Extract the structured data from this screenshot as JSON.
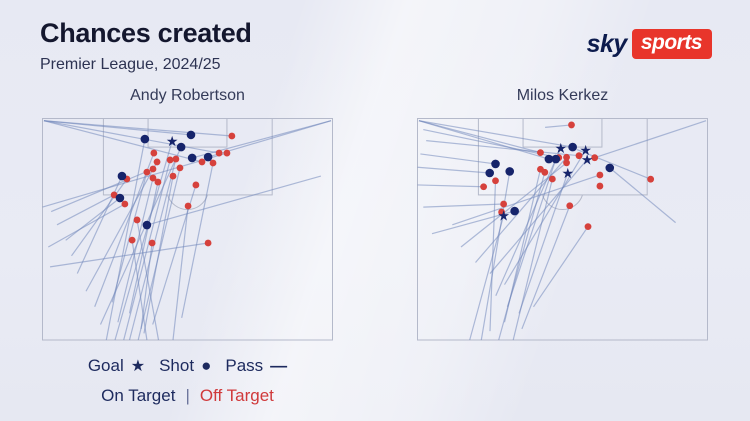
{
  "header": {
    "title": "Chances created",
    "subtitle": "Premier League, 2024/25"
  },
  "brand": {
    "sky": "sky",
    "sports": "sports"
  },
  "legend": {
    "goal_label": "Goal",
    "goal_icon": "★",
    "shot_label": "Shot",
    "shot_icon": "●",
    "pass_label": "Pass",
    "pass_icon": "—",
    "on_target_label": "On Target",
    "separator": "|",
    "off_target_label": "Off Target"
  },
  "colors": {
    "background": "#e9ebf4",
    "title_text": "#14172e",
    "on_target": "#16246b",
    "off_target": "#d6413c",
    "pass_line": "#7389bb",
    "pitch_line": "#b4b9ca",
    "sky_navy": "#0c1b4d",
    "sky_red": "#e8352b"
  },
  "chart_data": [
    {
      "type": "scatter",
      "title": "Andy Robertson",
      "units": "percent of pitch width (x, left-to-right) and pitch length toward own half (y, goal-line at top)",
      "marker_legend": {
        "goal": "star",
        "shot_on_target": "navy dot",
        "shot_off_target": "red dot",
        "pass": "line"
      },
      "goals": [
        [
          44.7,
          10.2
        ]
      ],
      "shots_on_target": [
        [
          35.3,
          9.3
        ],
        [
          51.2,
          7.4
        ],
        [
          47.8,
          12.9
        ],
        [
          51.6,
          17.8
        ],
        [
          57.1,
          17.4
        ],
        [
          27.4,
          26.0
        ],
        [
          26.7,
          35.9
        ],
        [
          36.0,
          48.1
        ]
      ],
      "shots_off_target": [
        [
          65.3,
          7.9
        ],
        [
          38.4,
          15.6
        ],
        [
          44.0,
          18.7
        ],
        [
          60.9,
          15.6
        ],
        [
          63.6,
          15.6
        ],
        [
          39.5,
          19.6
        ],
        [
          46.0,
          18.3
        ],
        [
          55.0,
          19.6
        ],
        [
          58.8,
          20.1
        ],
        [
          38.1,
          22.8
        ],
        [
          47.4,
          22.3
        ],
        [
          36.0,
          24.2
        ],
        [
          29.1,
          27.3
        ],
        [
          38.1,
          26.9
        ],
        [
          45.0,
          26.0
        ],
        [
          39.8,
          28.7
        ],
        [
          52.9,
          30.0
        ],
        [
          24.7,
          34.5
        ],
        [
          28.4,
          38.6
        ],
        [
          50.2,
          39.5
        ],
        [
          32.6,
          45.8
        ],
        [
          30.9,
          54.9
        ],
        [
          37.8,
          56.2
        ],
        [
          57.1,
          56.2
        ]
      ],
      "passes": [
        [
          0.5,
          1,
          51.2,
          7.4
        ],
        [
          0.5,
          1,
          60.9,
          15.6
        ],
        [
          0.5,
          1,
          55.0,
          19.6
        ],
        [
          0.5,
          1,
          65.3,
          7.9
        ],
        [
          99.5,
          1,
          57.1,
          17.4
        ],
        [
          99.5,
          1,
          51.6,
          17.8
        ],
        [
          22,
          100,
          35.3,
          9.3
        ],
        [
          25,
          100,
          44.7,
          10.2
        ],
        [
          28,
          100,
          44.0,
          18.7
        ],
        [
          30,
          100,
          46.0,
          18.3
        ],
        [
          33,
          100,
          47.4,
          22.3
        ],
        [
          35,
          97,
          45.0,
          26.0
        ],
        [
          38,
          93,
          52.9,
          30.0
        ],
        [
          20,
          93,
          47.8,
          12.9
        ],
        [
          45,
          100,
          50.2,
          39.5
        ],
        [
          18,
          85,
          38.4,
          15.6
        ],
        [
          15,
          78,
          39.5,
          19.6
        ],
        [
          12,
          70,
          27.4,
          26.0
        ],
        [
          10,
          62,
          29.1,
          27.3
        ],
        [
          8,
          55,
          26.7,
          35.9
        ],
        [
          5,
          48,
          24.7,
          34.5
        ],
        [
          3,
          42,
          38.1,
          22.8
        ],
        [
          2,
          58,
          28.4,
          38.6
        ],
        [
          30,
          88,
          39.8,
          28.7
        ],
        [
          2.6,
          67,
          57.1,
          56.2
        ],
        [
          40,
          100,
          32.6,
          45.8
        ],
        [
          36,
          100,
          30.9,
          54.9
        ],
        [
          34,
          95,
          37.8,
          56.2
        ],
        [
          48,
          90,
          58.8,
          20.1
        ],
        [
          0,
          40,
          63.6,
          15.6
        ],
        [
          96,
          26,
          36.0,
          48.1
        ],
        [
          26,
          92,
          38.1,
          26.9
        ],
        [
          24,
          83,
          36.0,
          24.2
        ]
      ]
    },
    {
      "type": "scatter",
      "title": "Milos Kerkez",
      "units": "percent of pitch width (x, left-to-right) and pitch length toward own half (y, goal-line at top)",
      "marker_legend": {
        "goal": "star",
        "shot_on_target": "navy dot",
        "shot_off_target": "red dot",
        "pass": "line"
      },
      "goals": [
        [
          49.4,
          13.3
        ],
        [
          58.0,
          14.2
        ],
        [
          58.5,
          18.5
        ],
        [
          51.8,
          24.6
        ],
        [
          29.7,
          43.8
        ]
      ],
      "shots_on_target": [
        [
          53.5,
          12.9
        ],
        [
          45.3,
          18.3
        ],
        [
          47.7,
          18.3
        ],
        [
          26.9,
          20.5
        ],
        [
          24.9,
          24.6
        ],
        [
          31.8,
          23.9
        ],
        [
          66.3,
          22.3
        ],
        [
          33.5,
          41.8
        ]
      ],
      "shots_off_target": [
        [
          53.1,
          2.9
        ],
        [
          42.4,
          15.4
        ],
        [
          48.7,
          17.7
        ],
        [
          51.4,
          17.5
        ],
        [
          55.7,
          16.8
        ],
        [
          61.1,
          17.7
        ],
        [
          62.9,
          25.5
        ],
        [
          42.4,
          22.9
        ],
        [
          43.9,
          24.3
        ],
        [
          46.5,
          27.3
        ],
        [
          51.4,
          20.0
        ],
        [
          62.9,
          30.5
        ],
        [
          22.8,
          30.8
        ],
        [
          26.9,
          28.1
        ],
        [
          29.7,
          38.6
        ],
        [
          52.5,
          39.4
        ],
        [
          80.4,
          27.4
        ],
        [
          58.8,
          48.8
        ],
        [
          29.0,
          42.2
        ]
      ],
      "passes": [
        [
          0.5,
          1,
          42.4,
          15.4
        ],
        [
          0.5,
          1,
          45.3,
          18.3
        ],
        [
          2,
          5,
          48.7,
          17.7
        ],
        [
          0.5,
          1,
          53.5,
          12.9
        ],
        [
          3,
          10,
          55.7,
          16.8
        ],
        [
          1,
          16,
          26.9,
          20.5
        ],
        [
          0,
          22,
          24.9,
          24.6
        ],
        [
          0,
          30,
          22.8,
          30.8
        ],
        [
          2,
          40,
          29.7,
          38.6
        ],
        [
          5,
          52,
          33.5,
          41.8
        ],
        [
          18,
          100,
          29.7,
          43.8
        ],
        [
          22,
          100,
          31.8,
          23.9
        ],
        [
          25,
          96,
          26.9,
          28.1
        ],
        [
          28,
          100,
          43.9,
          24.3
        ],
        [
          30,
          92,
          42.4,
          22.9
        ],
        [
          33,
          100,
          46.5,
          27.3
        ],
        [
          35,
          88,
          51.8,
          24.6
        ],
        [
          27,
          80,
          49.4,
          13.3
        ],
        [
          30,
          75,
          58.0,
          14.2
        ],
        [
          25,
          70,
          58.5,
          18.5
        ],
        [
          20,
          65,
          51.4,
          17.5
        ],
        [
          15,
          58,
          51.4,
          20.0
        ],
        [
          36,
          95,
          52.5,
          39.4
        ],
        [
          40,
          85,
          58.8,
          48.8
        ],
        [
          89,
          47,
          66.3,
          22.3
        ],
        [
          55,
          14,
          80.4,
          27.4
        ],
        [
          44,
          4,
          53.1,
          2.9
        ],
        [
          99.5,
          1,
          61.1,
          17.7
        ],
        [
          12,
          48,
          62.9,
          25.5
        ],
        [
          31,
          85,
          47.7,
          18.3
        ]
      ]
    }
  ]
}
